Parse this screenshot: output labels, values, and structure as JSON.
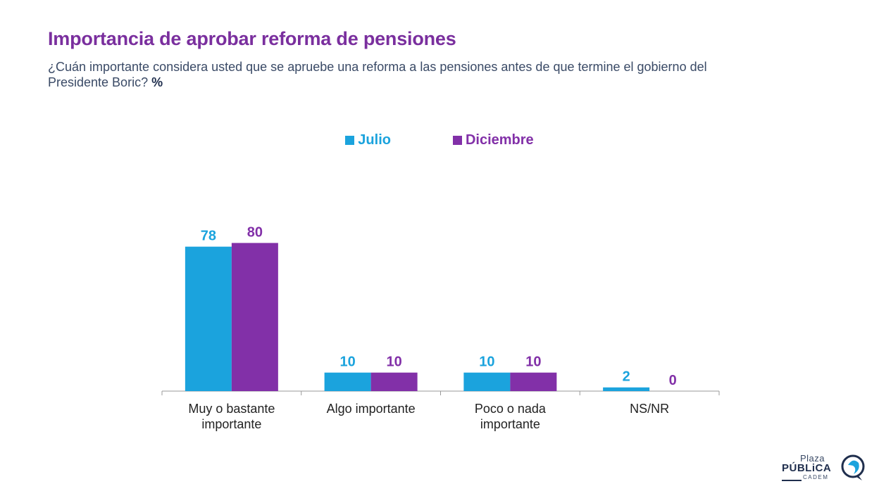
{
  "header": {
    "title": "Importancia de aprobar reforma de pensiones",
    "subtitle": "¿Cuán importante considera usted que se apruebe una reforma a las pensiones antes de que termine el gobierno del Presidente Boric?",
    "unit": "%"
  },
  "colors": {
    "julio": "#1ba3dd",
    "diciembre": "#8230a8",
    "title": "#7a2f9e",
    "axis": "#999999"
  },
  "chart_data": {
    "type": "bar",
    "categories": [
      [
        "Muy o bastante",
        "importante"
      ],
      [
        "Algo importante"
      ],
      [
        "Poco o nada",
        "importante"
      ],
      [
        "NS/NR"
      ]
    ],
    "series": [
      {
        "name": "Julio",
        "values": [
          78,
          10,
          10,
          2
        ],
        "color": "#1ba3dd"
      },
      {
        "name": "Diciembre",
        "values": [
          80,
          10,
          10,
          0
        ],
        "color": "#8230a8"
      }
    ],
    "ylim": [
      0,
      100
    ],
    "grid": false,
    "legend_position": "top-center"
  },
  "logo": {
    "line1": "Plaza",
    "line2": "PÚBLiCA",
    "line3": "CADEM"
  }
}
